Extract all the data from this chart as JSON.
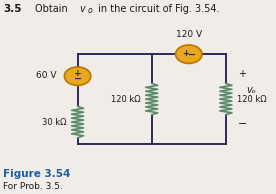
{
  "title_number": "3.5",
  "title_text": "Obtain v",
  "title_sub": "o",
  "title_rest": " in the circuit of Fig. 3.54.",
  "fig_label": "Figure 3.54",
  "fig_sublabel": "For Prob. 3.5.",
  "bg_color": "#f0ede8",
  "wire_color": "#2a2a5a",
  "resistor_color": "#5a8a6a",
  "source_edge_color": "#c07800",
  "source_fill_color": "#e8a820",
  "text_color": "#1a1a1a",
  "blue_color": "#1a5fa8",
  "source_60_label": "60 V",
  "source_120_label": "120 V",
  "r1_label": "30 kΩ",
  "r2_label": "120 kΩ",
  "r3_label": "120 kΩ",
  "vo_label": "vₒ",
  "xl": 0.28,
  "xm": 0.55,
  "xr": 0.82,
  "yt": 0.72,
  "yb": 0.25
}
